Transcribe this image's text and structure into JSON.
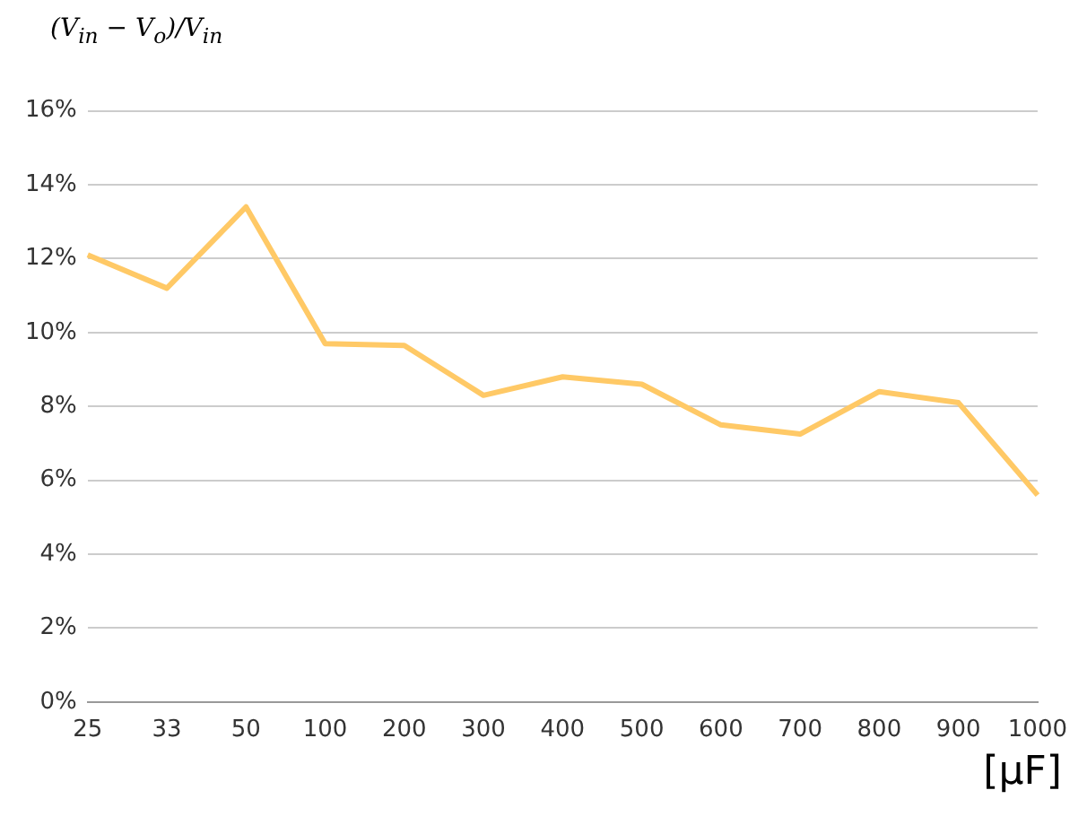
{
  "chart_data": {
    "type": "line",
    "ylabel": "(V$_{in}$ − V$_{o}$)/V$_{in}$",
    "xlabel": "[μF]",
    "categories": [
      "25",
      "33",
      "50",
      "100",
      "200",
      "300",
      "400",
      "500",
      "600",
      "700",
      "800",
      "900",
      "1000"
    ],
    "series": [
      {
        "color": "#ffc966",
        "values": [
          12.1,
          11.2,
          13.4,
          9.7,
          9.65,
          8.3,
          8.8,
          8.6,
          7.5,
          7.25,
          8.4,
          8.1,
          5.6
        ]
      }
    ],
    "ylim": [
      0,
      16
    ],
    "yticks": [
      {
        "value": 0,
        "label": "0%"
      },
      {
        "value": 2,
        "label": "2%"
      },
      {
        "value": 4,
        "label": "4%"
      },
      {
        "value": 6,
        "label": "6%"
      },
      {
        "value": 8,
        "label": "8%"
      },
      {
        "value": 10,
        "label": "10%"
      },
      {
        "value": 12,
        "label": "12%"
      },
      {
        "value": 14,
        "label": "14%"
      },
      {
        "value": 16,
        "label": "16%"
      }
    ],
    "grid": "y",
    "legend": false,
    "marker": "none",
    "line_style": "solid"
  }
}
